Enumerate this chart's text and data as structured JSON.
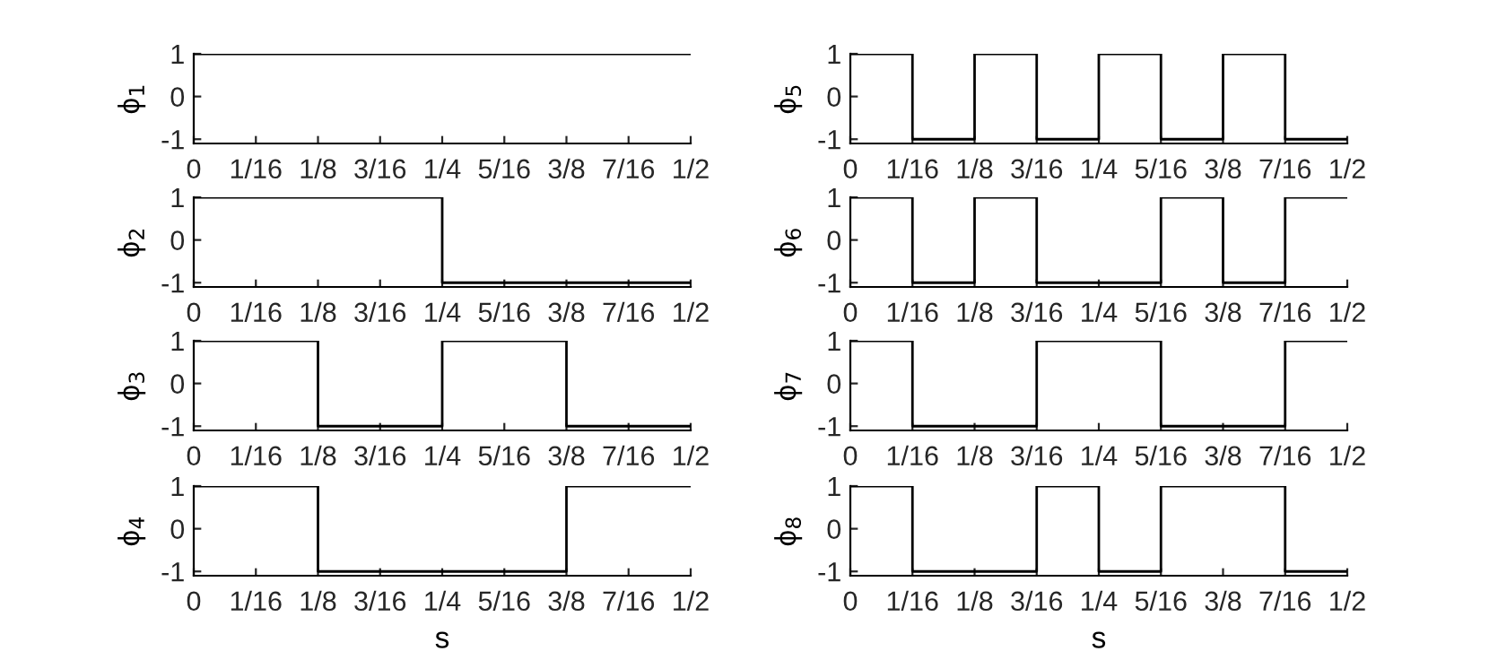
{
  "chart_data": [
    {
      "type": "step",
      "ylabel": "ϕ$_{1}$",
      "x": [
        0,
        0.0625,
        0.125,
        0.1875,
        0.25,
        0.3125,
        0.375,
        0.4375,
        0.5
      ],
      "values": [
        1,
        1,
        1,
        1,
        1,
        1,
        1,
        1,
        1
      ],
      "color": "#000000",
      "xlim": [
        0,
        0.5
      ],
      "ylim": [
        -1.1,
        1
      ],
      "xticks": [
        {
          "value": 0,
          "label": "0"
        },
        {
          "value": 0.0625,
          "label": "1/16"
        },
        {
          "value": 0.125,
          "label": "1/8"
        },
        {
          "value": 0.1875,
          "label": "3/16"
        },
        {
          "value": 0.25,
          "label": "1/4"
        },
        {
          "value": 0.3125,
          "label": "5/16"
        },
        {
          "value": 0.375,
          "label": "3/8"
        },
        {
          "value": 0.4375,
          "label": "7/16"
        },
        {
          "value": 0.5,
          "label": "1/2"
        }
      ],
      "yticks": [
        -1,
        0,
        1
      ],
      "grid": false
    },
    {
      "type": "step",
      "ylabel": "ϕ$_{5}$",
      "x": [
        0,
        0.0625,
        0.125,
        0.1875,
        0.25,
        0.3125,
        0.375,
        0.4375,
        0.5
      ],
      "values": [
        1,
        -1,
        1,
        -1,
        1,
        -1,
        1,
        -1,
        -1
      ],
      "color": "#000000",
      "xlim": [
        0,
        0.5
      ],
      "ylim": [
        -1.1,
        1
      ],
      "xticks": [
        {
          "value": 0,
          "label": "0"
        },
        {
          "value": 0.0625,
          "label": "1/16"
        },
        {
          "value": 0.125,
          "label": "1/8"
        },
        {
          "value": 0.1875,
          "label": "3/16"
        },
        {
          "value": 0.25,
          "label": "1/4"
        },
        {
          "value": 0.3125,
          "label": "5/16"
        },
        {
          "value": 0.375,
          "label": "3/8"
        },
        {
          "value": 0.4375,
          "label": "7/16"
        },
        {
          "value": 0.5,
          "label": "1/2"
        }
      ],
      "yticks": [
        -1,
        0,
        1
      ],
      "grid": false
    },
    {
      "type": "step",
      "ylabel": "ϕ$_{2}$",
      "x": [
        0,
        0.0625,
        0.125,
        0.1875,
        0.25,
        0.3125,
        0.375,
        0.4375,
        0.5
      ],
      "values": [
        1,
        1,
        1,
        1,
        -1,
        -1,
        -1,
        -1,
        -1
      ],
      "color": "#000000",
      "xlim": [
        0,
        0.5
      ],
      "ylim": [
        -1.1,
        1
      ],
      "xticks": [
        {
          "value": 0,
          "label": "0"
        },
        {
          "value": 0.0625,
          "label": "1/16"
        },
        {
          "value": 0.125,
          "label": "1/8"
        },
        {
          "value": 0.1875,
          "label": "3/16"
        },
        {
          "value": 0.25,
          "label": "1/4"
        },
        {
          "value": 0.3125,
          "label": "5/16"
        },
        {
          "value": 0.375,
          "label": "3/8"
        },
        {
          "value": 0.4375,
          "label": "7/16"
        },
        {
          "value": 0.5,
          "label": "1/2"
        }
      ],
      "yticks": [
        -1,
        0,
        1
      ],
      "grid": false
    },
    {
      "type": "step",
      "ylabel": "ϕ$_{6}$",
      "x": [
        0,
        0.0625,
        0.125,
        0.1875,
        0.25,
        0.3125,
        0.375,
        0.4375,
        0.5
      ],
      "values": [
        1,
        -1,
        1,
        -1,
        -1,
        1,
        -1,
        1,
        1
      ],
      "color": "#000000",
      "xlim": [
        0,
        0.5
      ],
      "ylim": [
        -1.1,
        1
      ],
      "xticks": [
        {
          "value": 0,
          "label": "0"
        },
        {
          "value": 0.0625,
          "label": "1/16"
        },
        {
          "value": 0.125,
          "label": "1/8"
        },
        {
          "value": 0.1875,
          "label": "3/16"
        },
        {
          "value": 0.25,
          "label": "1/4"
        },
        {
          "value": 0.3125,
          "label": "5/16"
        },
        {
          "value": 0.375,
          "label": "3/8"
        },
        {
          "value": 0.4375,
          "label": "7/16"
        },
        {
          "value": 0.5,
          "label": "1/2"
        }
      ],
      "yticks": [
        -1,
        0,
        1
      ],
      "grid": false
    },
    {
      "type": "step",
      "ylabel": "ϕ$_{3}$",
      "x": [
        0,
        0.0625,
        0.125,
        0.1875,
        0.25,
        0.3125,
        0.375,
        0.4375,
        0.5
      ],
      "values": [
        1,
        1,
        -1,
        -1,
        1,
        1,
        -1,
        -1,
        -1
      ],
      "color": "#000000",
      "xlim": [
        0,
        0.5
      ],
      "ylim": [
        -1.1,
        1
      ],
      "xticks": [
        {
          "value": 0,
          "label": "0"
        },
        {
          "value": 0.0625,
          "label": "1/16"
        },
        {
          "value": 0.125,
          "label": "1/8"
        },
        {
          "value": 0.1875,
          "label": "3/16"
        },
        {
          "value": 0.25,
          "label": "1/4"
        },
        {
          "value": 0.3125,
          "label": "5/16"
        },
        {
          "value": 0.375,
          "label": "3/8"
        },
        {
          "value": 0.4375,
          "label": "7/16"
        },
        {
          "value": 0.5,
          "label": "1/2"
        }
      ],
      "yticks": [
        -1,
        0,
        1
      ],
      "grid": false
    },
    {
      "type": "step",
      "ylabel": "ϕ$_{7}$",
      "x": [
        0,
        0.0625,
        0.125,
        0.1875,
        0.25,
        0.3125,
        0.375,
        0.4375,
        0.5
      ],
      "values": [
        1,
        -1,
        -1,
        1,
        1,
        -1,
        -1,
        1,
        1
      ],
      "color": "#000000",
      "xlim": [
        0,
        0.5
      ],
      "ylim": [
        -1.1,
        1
      ],
      "xticks": [
        {
          "value": 0,
          "label": "0"
        },
        {
          "value": 0.0625,
          "label": "1/16"
        },
        {
          "value": 0.125,
          "label": "1/8"
        },
        {
          "value": 0.1875,
          "label": "3/16"
        },
        {
          "value": 0.25,
          "label": "1/4"
        },
        {
          "value": 0.3125,
          "label": "5/16"
        },
        {
          "value": 0.375,
          "label": "3/8"
        },
        {
          "value": 0.4375,
          "label": "7/16"
        },
        {
          "value": 0.5,
          "label": "1/2"
        }
      ],
      "yticks": [
        -1,
        0,
        1
      ],
      "grid": false
    },
    {
      "type": "step",
      "ylabel": "ϕ$_{4}$",
      "xlabel": "s",
      "x": [
        0,
        0.0625,
        0.125,
        0.1875,
        0.25,
        0.3125,
        0.375,
        0.4375,
        0.5
      ],
      "values": [
        1,
        1,
        -1,
        -1,
        -1,
        -1,
        1,
        1,
        1
      ],
      "color": "#000000",
      "xlim": [
        0,
        0.5
      ],
      "ylim": [
        -1.1,
        1
      ],
      "xticks": [
        {
          "value": 0,
          "label": "0"
        },
        {
          "value": 0.0625,
          "label": "1/16"
        },
        {
          "value": 0.125,
          "label": "1/8"
        },
        {
          "value": 0.1875,
          "label": "3/16"
        },
        {
          "value": 0.25,
          "label": "1/4"
        },
        {
          "value": 0.3125,
          "label": "5/16"
        },
        {
          "value": 0.375,
          "label": "3/8"
        },
        {
          "value": 0.4375,
          "label": "7/16"
        },
        {
          "value": 0.5,
          "label": "1/2"
        }
      ],
      "yticks": [
        -1,
        0,
        1
      ],
      "grid": false
    },
    {
      "type": "step",
      "ylabel": "ϕ$_{8}$",
      "xlabel": "s",
      "x": [
        0,
        0.0625,
        0.125,
        0.1875,
        0.25,
        0.3125,
        0.375,
        0.4375,
        0.5
      ],
      "values": [
        1,
        -1,
        -1,
        1,
        -1,
        1,
        1,
        -1,
        -1
      ],
      "color": "#000000",
      "xlim": [
        0,
        0.5
      ],
      "ylim": [
        -1.1,
        1
      ],
      "xticks": [
        {
          "value": 0,
          "label": "0"
        },
        {
          "value": 0.0625,
          "label": "1/16"
        },
        {
          "value": 0.125,
          "label": "1/8"
        },
        {
          "value": 0.1875,
          "label": "3/16"
        },
        {
          "value": 0.25,
          "label": "1/4"
        },
        {
          "value": 0.3125,
          "label": "5/16"
        },
        {
          "value": 0.375,
          "label": "3/8"
        },
        {
          "value": 0.4375,
          "label": "7/16"
        },
        {
          "value": 0.5,
          "label": "1/2"
        }
      ],
      "yticks": [
        -1,
        0,
        1
      ],
      "grid": false
    }
  ]
}
